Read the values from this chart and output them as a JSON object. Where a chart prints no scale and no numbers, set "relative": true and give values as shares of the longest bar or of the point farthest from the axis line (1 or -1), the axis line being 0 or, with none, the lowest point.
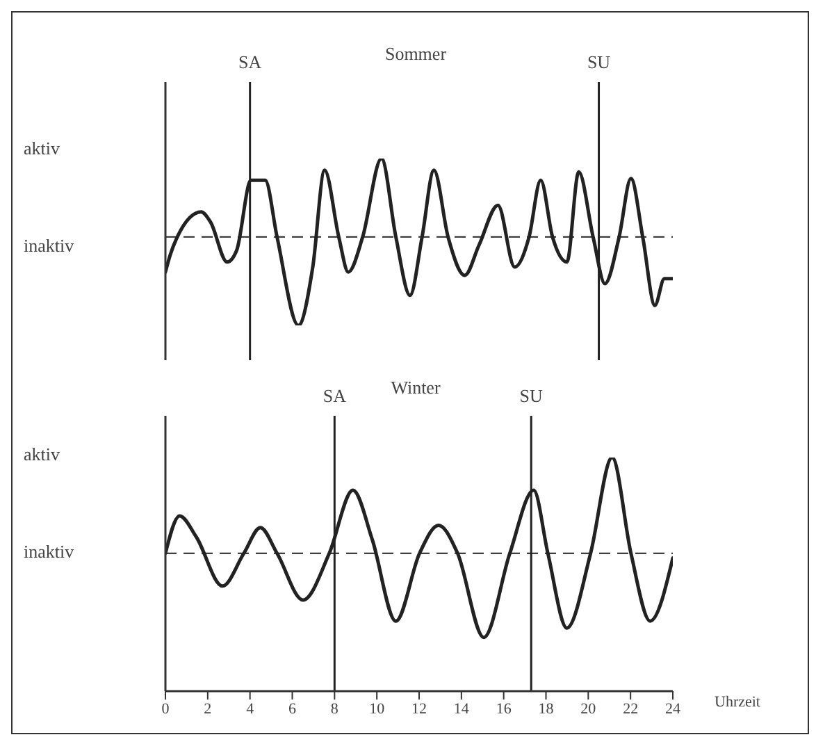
{
  "chart_data": [
    {
      "type": "line",
      "title": "Sommer",
      "relative": true,
      "xlim": [
        0,
        24
      ],
      "tick_labels": false,
      "annotations": [
        "aktiv",
        "inaktiv"
      ],
      "x": [
        0,
        0.22,
        0.56,
        1.69,
        2.13,
        2.92,
        3.37,
        4.05,
        4.72,
        5.28,
        6.29,
        6.97,
        7.53,
        8.2,
        8.65,
        9.33,
        10.22,
        10.9,
        11.57,
        12.14,
        12.7,
        13.37,
        14.16,
        14.83,
        15.73,
        16.52,
        17.2,
        17.75,
        18.31,
        18.99,
        19.55,
        20.23,
        20.79,
        21.46,
        22.02,
        22.59,
        23.15,
        23.6,
        24
      ],
      "series": [
        {
          "color": "#222222",
          "values": [
            0.32,
            0.42,
            0.53,
            0.68,
            0.62,
            0.38,
            0.45,
            0.87,
            0.87,
            0.53,
            0,
            0.35,
            0.93,
            0.53,
            0.32,
            0.53,
            1,
            0.53,
            0.18,
            0.53,
            0.93,
            0.53,
            0.3,
            0.48,
            0.72,
            0.35,
            0.53,
            0.87,
            0.53,
            0.38,
            0.92,
            0.53,
            0.25,
            0.53,
            0.88,
            0.52,
            0.12,
            0.28,
            0.28
          ]
        }
      ],
      "ref_lines": [
        {
          "axis": "y",
          "value": 0.53,
          "line_style": "dashed",
          "color": "#222222"
        },
        {
          "axis": "x",
          "value": 4,
          "label": "SA",
          "color": "#222222"
        },
        {
          "axis": "x",
          "value": 20.5,
          "label": "SU",
          "color": "#222222"
        }
      ],
      "marker": "none",
      "line_style": "solid",
      "grid": false,
      "legend": false
    },
    {
      "type": "line",
      "title": "Winter",
      "relative": true,
      "xlim": [
        0,
        24
      ],
      "xticks": [
        0,
        2,
        4,
        6,
        8,
        10,
        12,
        14,
        16,
        18,
        20,
        22,
        24
      ],
      "xlabel": "Uhrzeit",
      "tick_labels": "x",
      "annotations": [
        "aktiv",
        "inaktiv"
      ],
      "x": [
        0,
        0.67,
        1.46,
        2.7,
        3.71,
        4.49,
        5.28,
        6.51,
        7.75,
        8.87,
        9.78,
        10.9,
        12.02,
        12.92,
        13.82,
        15.06,
        16.29,
        17.42,
        18.09,
        18.99,
        20.11,
        21.13,
        22.02,
        22.93,
        24
      ],
      "series": [
        {
          "color": "#222222",
          "values": [
            0.59,
            0.75,
            0.66,
            0.45,
            0.59,
            0.7,
            0.59,
            0.39,
            0.59,
            0.86,
            0.65,
            0.3,
            0.59,
            0.71,
            0.59,
            0.23,
            0.59,
            0.86,
            0.59,
            0.27,
            0.59,
            1,
            0.59,
            0.3,
            0.57
          ]
        }
      ],
      "ref_lines": [
        {
          "axis": "y",
          "value": 0.59,
          "line_style": "dashed",
          "color": "#222222"
        },
        {
          "axis": "x",
          "value": 8,
          "label": "SA",
          "color": "#222222"
        },
        {
          "axis": "x",
          "value": 17.3,
          "label": "SU",
          "color": "#222222"
        }
      ],
      "marker": "none",
      "line_style": "solid",
      "grid": false,
      "legend": false
    }
  ]
}
